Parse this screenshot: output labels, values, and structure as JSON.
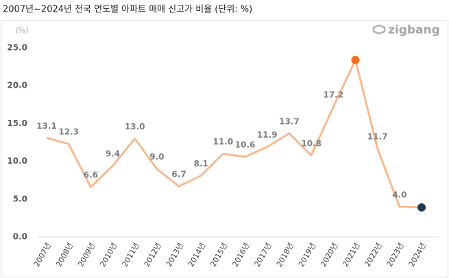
{
  "chart_data": {
    "type": "line",
    "title": "2007년~2024년 전국 연도별 아파트 매매 신고가 비율 (단위: %)",
    "y_unit": "(%)",
    "logo": "zigbang",
    "categories": [
      "2007년",
      "2008년",
      "2009년",
      "2010년",
      "2011년",
      "2012년",
      "2013년",
      "2014년",
      "2015년",
      "2016년",
      "2017년",
      "2018년",
      "2019년",
      "2020년",
      "2021년",
      "2022년",
      "2023년",
      "2024년"
    ],
    "values": [
      13.1,
      12.3,
      6.6,
      9.4,
      13.0,
      9.0,
      6.7,
      8.1,
      11.0,
      10.6,
      11.9,
      13.7,
      10.8,
      17.2,
      23.4,
      11.7,
      4.0,
      3.9
    ],
    "value_labels": [
      "13.1",
      "12.3",
      "6.6",
      "9.4",
      "13.0",
      "9.0",
      "6.7",
      "8.1",
      "11.0",
      "10.6",
      "11.9",
      "13.7",
      "10.8",
      "17.2",
      null,
      "11.7",
      "4.0",
      null
    ],
    "color": "#f8b98e",
    "point_colors": [
      null,
      null,
      null,
      null,
      null,
      null,
      null,
      null,
      null,
      null,
      null,
      null,
      null,
      null,
      "#f26f21",
      null,
      null,
      "#1f3856"
    ],
    "ylim": [
      0,
      25
    ],
    "yticks": [
      {
        "value": 0,
        "label": "0.0"
      },
      {
        "value": 5,
        "label": "5.0"
      },
      {
        "value": 10,
        "label": "10.0"
      },
      {
        "value": 15,
        "label": "15.0"
      },
      {
        "value": 20,
        "label": "20.0"
      },
      {
        "value": 25,
        "label": "25.0"
      }
    ],
    "grid": false
  }
}
